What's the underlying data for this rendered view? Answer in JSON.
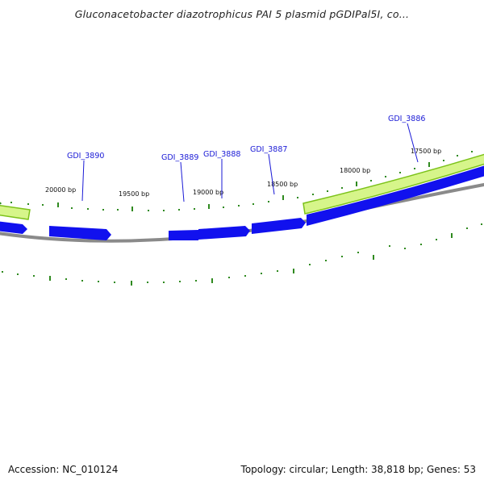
{
  "title": "Gluconacetobacter diazotrophicus PAI 5 plasmid pGDIPal5I, co...",
  "footer": {
    "accession": "Accession: NC_010124",
    "summary": "Topology: circular; Length: 38,818 bp; Genes: 53"
  },
  "colors": {
    "forward_gene": "#1111ee",
    "gene_highlight": "#99e01a",
    "backbone": "#888888",
    "tick": "#2f8a1f",
    "label": "#1a1ad6"
  },
  "position_labels": [
    "20000 bp",
    "19500 bp",
    "19000 bp",
    "18500 bp",
    "18000 bp",
    "17500 bp"
  ],
  "gene_labels": [
    "GDI_3890",
    "GDI_3889",
    "GDI_3888",
    "GDI_3887",
    "GDI_3886"
  ]
}
